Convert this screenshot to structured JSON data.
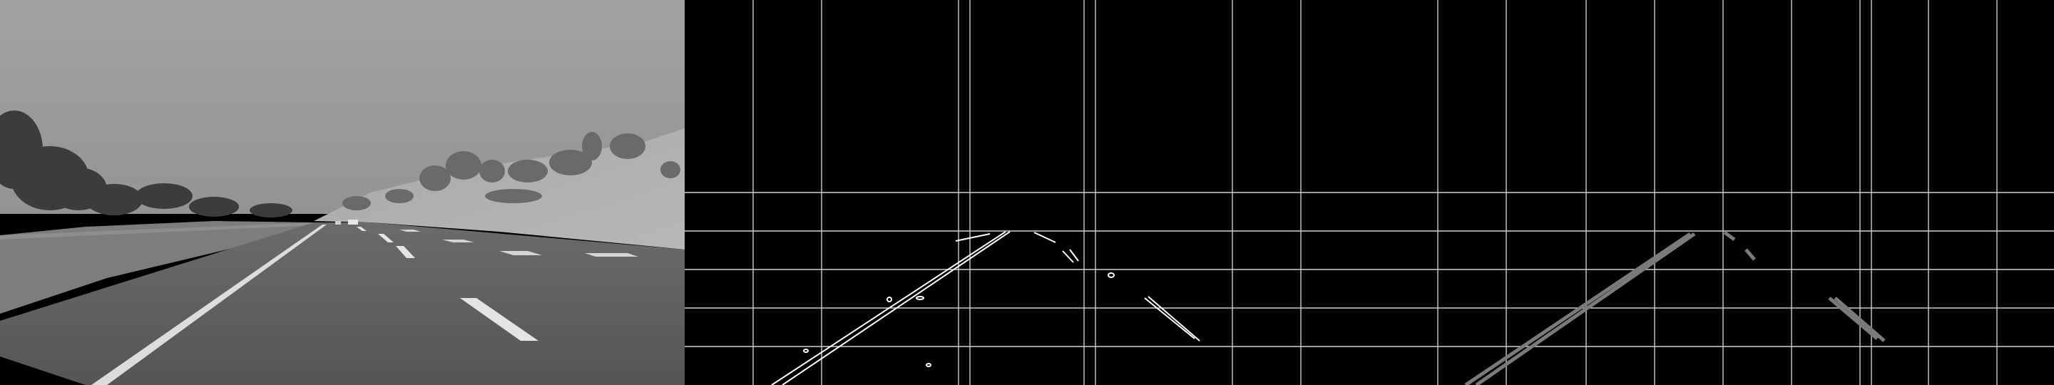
{
  "panels": [
    {
      "name": "grayscale-road-frame"
    },
    {
      "name": "canny-edge-output"
    },
    {
      "name": "hough-lane-lines"
    }
  ],
  "colors": {
    "background": "#000000",
    "grid": "#cfcfcf",
    "edges": "#ffffff",
    "hough_lines": "#7a7a7a",
    "sky": "#9a9a9a",
    "road": "#5e5e5e"
  }
}
